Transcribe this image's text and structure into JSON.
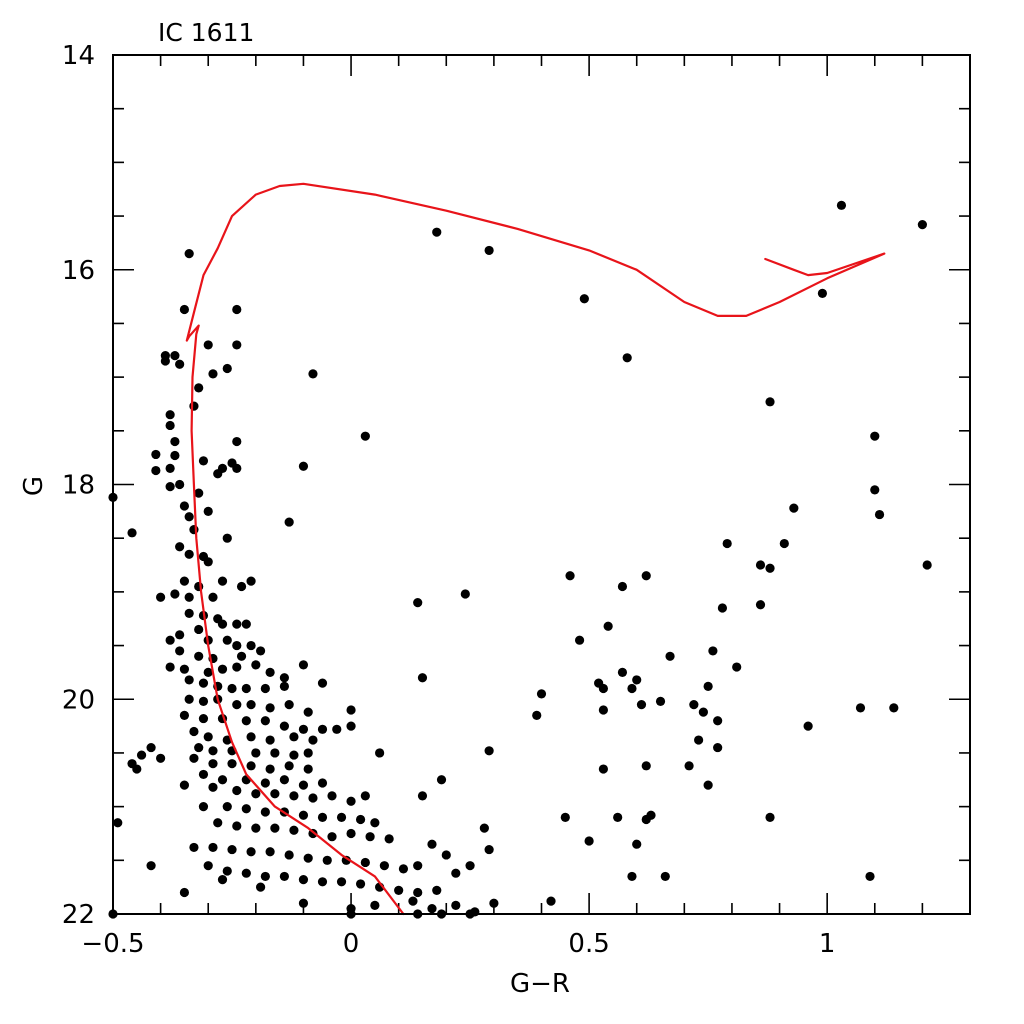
{
  "chart_data": {
    "type": "scatter",
    "title": "IC 1611",
    "xlabel": "G−R",
    "ylabel": "G",
    "xlim": [
      -0.5,
      1.3
    ],
    "ylim": [
      22,
      14
    ],
    "y_inverted": true,
    "grid": false,
    "x_ticks": [
      {
        "value": -0.5,
        "label": "−0.5"
      },
      {
        "value": 0,
        "label": "0"
      },
      {
        "value": 0.5,
        "label": "0.5"
      },
      {
        "value": 1,
        "label": "1"
      }
    ],
    "y_ticks": [
      {
        "value": 14,
        "label": "14"
      },
      {
        "value": 16,
        "label": "16"
      },
      {
        "value": 18,
        "label": "18"
      },
      {
        "value": 20,
        "label": "20"
      },
      {
        "value": 22,
        "label": "22"
      }
    ],
    "points": [
      [
        -0.34,
        15.85
      ],
      [
        0.18,
        15.65
      ],
      [
        0.29,
        15.82
      ],
      [
        1.03,
        15.4
      ],
      [
        1.2,
        15.58
      ],
      [
        0.49,
        16.27
      ],
      [
        0.99,
        16.22
      ],
      [
        0.58,
        16.82
      ],
      [
        0.88,
        17.23
      ],
      [
        1.1,
        17.55
      ],
      [
        0.03,
        17.55
      ],
      [
        -0.08,
        16.97
      ],
      [
        -0.35,
        16.37
      ],
      [
        -0.24,
        16.37
      ],
      [
        -0.24,
        16.7
      ],
      [
        -0.3,
        16.7
      ],
      [
        -0.39,
        16.8
      ],
      [
        -0.39,
        16.85
      ],
      [
        -0.37,
        16.8
      ],
      [
        -0.36,
        16.88
      ],
      [
        -0.32,
        17.1
      ],
      [
        -0.33,
        17.27
      ],
      [
        -0.26,
        16.92
      ],
      [
        -0.29,
        16.97
      ],
      [
        -0.38,
        17.35
      ],
      [
        -0.38,
        17.45
      ],
      [
        -0.37,
        17.6
      ],
      [
        -0.41,
        17.72
      ],
      [
        -0.37,
        17.73
      ],
      [
        -0.38,
        17.85
      ],
      [
        -0.41,
        17.87
      ],
      [
        -0.24,
        17.6
      ],
      [
        -0.25,
        17.8
      ],
      [
        -0.24,
        17.85
      ],
      [
        -0.27,
        17.85
      ],
      [
        -0.28,
        17.9
      ],
      [
        -0.31,
        17.78
      ],
      [
        -0.1,
        17.83
      ],
      [
        -0.38,
        18.02
      ],
      [
        -0.36,
        18.0
      ],
      [
        -0.32,
        18.08
      ],
      [
        -0.35,
        18.2
      ],
      [
        -0.34,
        18.3
      ],
      [
        -0.3,
        18.25
      ],
      [
        -0.33,
        18.42
      ],
      [
        -0.36,
        18.58
      ],
      [
        -0.34,
        18.65
      ],
      [
        -0.31,
        18.67
      ],
      [
        -0.26,
        18.5
      ],
      [
        -0.3,
        18.72
      ],
      [
        -0.27,
        18.9
      ],
      [
        -0.21,
        18.9
      ],
      [
        -0.23,
        18.95
      ],
      [
        -0.13,
        18.35
      ],
      [
        -0.5,
        18.12
      ],
      [
        -0.46,
        18.45
      ],
      [
        -0.35,
        18.9
      ],
      [
        -0.32,
        18.95
      ],
      [
        -0.34,
        19.05
      ],
      [
        -0.29,
        19.05
      ],
      [
        -0.37,
        19.02
      ],
      [
        -0.4,
        19.05
      ],
      [
        -0.34,
        19.2
      ],
      [
        -0.31,
        19.22
      ],
      [
        -0.28,
        19.25
      ],
      [
        -0.24,
        19.3
      ],
      [
        -0.22,
        19.3
      ],
      [
        -0.27,
        19.3
      ],
      [
        -0.32,
        19.35
      ],
      [
        -0.36,
        19.4
      ],
      [
        -0.38,
        19.45
      ],
      [
        -0.3,
        19.45
      ],
      [
        -0.26,
        19.45
      ],
      [
        -0.24,
        19.5
      ],
      [
        -0.21,
        19.5
      ],
      [
        -0.19,
        19.55
      ],
      [
        -0.36,
        19.55
      ],
      [
        -0.32,
        19.6
      ],
      [
        -0.29,
        19.62
      ],
      [
        -0.23,
        19.6
      ],
      [
        -0.38,
        19.7
      ],
      [
        -0.35,
        19.72
      ],
      [
        -0.3,
        19.75
      ],
      [
        -0.27,
        19.72
      ],
      [
        -0.24,
        19.7
      ],
      [
        -0.2,
        19.68
      ],
      [
        -0.17,
        19.75
      ],
      [
        -0.1,
        19.68
      ],
      [
        -0.14,
        19.8
      ],
      [
        -0.34,
        19.82
      ],
      [
        -0.31,
        19.85
      ],
      [
        -0.28,
        19.88
      ],
      [
        -0.25,
        19.9
      ],
      [
        -0.22,
        19.9
      ],
      [
        -0.18,
        19.9
      ],
      [
        -0.14,
        19.88
      ],
      [
        -0.06,
        19.85
      ],
      [
        -0.34,
        20.0
      ],
      [
        -0.31,
        20.02
      ],
      [
        -0.28,
        20.0
      ],
      [
        -0.24,
        20.05
      ],
      [
        -0.21,
        20.05
      ],
      [
        -0.17,
        20.08
      ],
      [
        -0.13,
        20.05
      ],
      [
        -0.09,
        20.12
      ],
      [
        0.0,
        20.1
      ],
      [
        -0.35,
        20.15
      ],
      [
        -0.31,
        20.18
      ],
      [
        -0.27,
        20.18
      ],
      [
        -0.22,
        20.2
      ],
      [
        -0.18,
        20.2
      ],
      [
        -0.14,
        20.25
      ],
      [
        -0.1,
        20.28
      ],
      [
        -0.06,
        20.28
      ],
      [
        -0.03,
        20.28
      ],
      [
        0.0,
        20.25
      ],
      [
        -0.33,
        20.3
      ],
      [
        -0.3,
        20.35
      ],
      [
        -0.26,
        20.38
      ],
      [
        -0.21,
        20.35
      ],
      [
        -0.17,
        20.38
      ],
      [
        -0.12,
        20.35
      ],
      [
        -0.08,
        20.38
      ],
      [
        -0.32,
        20.45
      ],
      [
        -0.29,
        20.48
      ],
      [
        -0.25,
        20.48
      ],
      [
        -0.2,
        20.5
      ],
      [
        -0.16,
        20.5
      ],
      [
        -0.12,
        20.52
      ],
      [
        -0.09,
        20.5
      ],
      [
        0.06,
        20.5
      ],
      [
        -0.42,
        20.45
      ],
      [
        -0.44,
        20.52
      ],
      [
        -0.4,
        20.55
      ],
      [
        -0.33,
        20.55
      ],
      [
        -0.29,
        20.6
      ],
      [
        -0.25,
        20.6
      ],
      [
        -0.21,
        20.62
      ],
      [
        -0.17,
        20.65
      ],
      [
        -0.13,
        20.62
      ],
      [
        -0.09,
        20.65
      ],
      [
        -0.46,
        20.6
      ],
      [
        -0.45,
        20.65
      ],
      [
        -0.31,
        20.7
      ],
      [
        -0.27,
        20.75
      ],
      [
        -0.22,
        20.75
      ],
      [
        -0.18,
        20.78
      ],
      [
        -0.14,
        20.75
      ],
      [
        -0.1,
        20.8
      ],
      [
        -0.06,
        20.78
      ],
      [
        -0.35,
        20.8
      ],
      [
        -0.29,
        20.82
      ],
      [
        -0.24,
        20.85
      ],
      [
        -0.2,
        20.88
      ],
      [
        -0.16,
        20.88
      ],
      [
        -0.12,
        20.9
      ],
      [
        -0.08,
        20.92
      ],
      [
        -0.04,
        20.9
      ],
      [
        0.0,
        20.95
      ],
      [
        0.03,
        20.9
      ],
      [
        -0.31,
        21.0
      ],
      [
        -0.26,
        21.0
      ],
      [
        -0.22,
        21.02
      ],
      [
        -0.18,
        21.05
      ],
      [
        -0.14,
        21.05
      ],
      [
        -0.1,
        21.08
      ],
      [
        -0.06,
        21.1
      ],
      [
        -0.02,
        21.1
      ],
      [
        0.02,
        21.12
      ],
      [
        0.05,
        21.15
      ],
      [
        -0.49,
        21.15
      ],
      [
        -0.28,
        21.15
      ],
      [
        -0.24,
        21.18
      ],
      [
        -0.2,
        21.2
      ],
      [
        -0.16,
        21.2
      ],
      [
        -0.12,
        21.22
      ],
      [
        -0.08,
        21.25
      ],
      [
        -0.04,
        21.28
      ],
      [
        0.0,
        21.25
      ],
      [
        0.04,
        21.28
      ],
      [
        0.08,
        21.3
      ],
      [
        -0.33,
        21.38
      ],
      [
        -0.29,
        21.38
      ],
      [
        -0.25,
        21.4
      ],
      [
        -0.21,
        21.42
      ],
      [
        -0.17,
        21.42
      ],
      [
        -0.13,
        21.45
      ],
      [
        -0.09,
        21.48
      ],
      [
        -0.05,
        21.5
      ],
      [
        -0.01,
        21.5
      ],
      [
        0.03,
        21.52
      ],
      [
        0.07,
        21.55
      ],
      [
        0.11,
        21.58
      ],
      [
        0.14,
        21.55
      ],
      [
        -0.42,
        21.55
      ],
      [
        -0.3,
        21.55
      ],
      [
        -0.26,
        21.6
      ],
      [
        -0.22,
        21.62
      ],
      [
        -0.18,
        21.65
      ],
      [
        -0.14,
        21.65
      ],
      [
        -0.1,
        21.68
      ],
      [
        -0.06,
        21.7
      ],
      [
        -0.02,
        21.7
      ],
      [
        0.02,
        21.72
      ],
      [
        0.06,
        21.75
      ],
      [
        0.1,
        21.78
      ],
      [
        0.14,
        21.8
      ],
      [
        0.18,
        21.78
      ],
      [
        0.22,
        21.62
      ],
      [
        0.25,
        21.55
      ],
      [
        0.29,
        21.4
      ],
      [
        0.28,
        21.2
      ],
      [
        0.17,
        21.35
      ],
      [
        0.2,
        21.45
      ],
      [
        -0.35,
        21.8
      ],
      [
        -0.27,
        21.68
      ],
      [
        -0.19,
        21.75
      ],
      [
        -0.1,
        21.9
      ],
      [
        0.0,
        21.95
      ],
      [
        0.05,
        21.92
      ],
      [
        0.13,
        21.88
      ],
      [
        0.17,
        21.95
      ],
      [
        0.22,
        21.92
      ],
      [
        0.26,
        21.98
      ],
      [
        0.3,
        21.9
      ],
      [
        0.42,
        21.88
      ],
      [
        -0.5,
        22.0
      ],
      [
        0.0,
        22.0
      ],
      [
        0.14,
        22.0
      ],
      [
        0.19,
        22.0
      ],
      [
        0.25,
        22.0
      ],
      [
        0.5,
        21.32
      ],
      [
        0.45,
        21.1
      ],
      [
        0.53,
        20.65
      ],
      [
        0.56,
        21.1
      ],
      [
        0.6,
        21.35
      ],
      [
        0.59,
        21.65
      ],
      [
        0.62,
        21.12
      ],
      [
        0.62,
        20.62
      ],
      [
        0.63,
        21.08
      ],
      [
        0.66,
        21.65
      ],
      [
        0.71,
        20.62
      ],
      [
        0.73,
        20.38
      ],
      [
        0.75,
        20.8
      ],
      [
        0.77,
        20.45
      ],
      [
        0.77,
        20.2
      ],
      [
        0.88,
        21.1
      ],
      [
        1.09,
        21.65
      ],
      [
        0.39,
        20.15
      ],
      [
        0.4,
        19.95
      ],
      [
        0.48,
        19.45
      ],
      [
        0.52,
        19.85
      ],
      [
        0.53,
        19.9
      ],
      [
        0.53,
        20.1
      ],
      [
        0.54,
        19.32
      ],
      [
        0.57,
        19.75
      ],
      [
        0.59,
        19.9
      ],
      [
        0.6,
        19.82
      ],
      [
        0.61,
        20.05
      ],
      [
        0.65,
        20.02
      ],
      [
        0.67,
        19.6
      ],
      [
        0.72,
        20.05
      ],
      [
        0.74,
        20.12
      ],
      [
        0.75,
        19.88
      ],
      [
        0.76,
        19.55
      ],
      [
        0.78,
        19.15
      ],
      [
        0.81,
        19.7
      ],
      [
        0.86,
        19.12
      ],
      [
        0.86,
        18.75
      ],
      [
        0.88,
        18.78
      ],
      [
        0.91,
        18.55
      ],
      [
        0.93,
        18.22
      ],
      [
        0.96,
        20.25
      ],
      [
        1.07,
        20.08
      ],
      [
        1.14,
        20.08
      ],
      [
        1.1,
        18.05
      ],
      [
        1.11,
        18.28
      ],
      [
        1.21,
        18.75
      ],
      [
        0.46,
        18.85
      ],
      [
        0.57,
        18.95
      ],
      [
        0.62,
        18.85
      ],
      [
        0.79,
        18.55
      ],
      [
        0.14,
        19.1
      ],
      [
        0.24,
        19.02
      ],
      [
        0.15,
        19.8
      ],
      [
        0.29,
        20.48
      ],
      [
        0.19,
        20.75
      ],
      [
        0.15,
        20.9
      ]
    ],
    "isochrone": [
      [
        0.11,
        22.0
      ],
      [
        0.05,
        21.65
      ],
      [
        -0.02,
        21.45
      ],
      [
        -0.09,
        21.2
      ],
      [
        -0.16,
        21.0
      ],
      [
        -0.22,
        20.7
      ],
      [
        -0.25,
        20.4
      ],
      [
        -0.28,
        20.0
      ],
      [
        -0.3,
        19.5
      ],
      [
        -0.315,
        19.0
      ],
      [
        -0.325,
        18.5
      ],
      [
        -0.33,
        18.0
      ],
      [
        -0.335,
        17.5
      ],
      [
        -0.333,
        17.0
      ],
      [
        -0.325,
        16.6
      ],
      [
        -0.32,
        16.52
      ],
      [
        -0.34,
        16.62
      ],
      [
        -0.345,
        16.66
      ],
      [
        -0.33,
        16.4
      ],
      [
        -0.31,
        16.05
      ],
      [
        -0.28,
        15.8
      ],
      [
        -0.25,
        15.5
      ],
      [
        -0.2,
        15.3
      ],
      [
        -0.15,
        15.22
      ],
      [
        -0.1,
        15.2
      ],
      [
        0.05,
        15.3
      ],
      [
        0.2,
        15.45
      ],
      [
        0.35,
        15.62
      ],
      [
        0.5,
        15.82
      ],
      [
        0.6,
        16.0
      ],
      [
        0.7,
        16.3
      ],
      [
        0.77,
        16.43
      ],
      [
        0.83,
        16.43
      ],
      [
        0.9,
        16.3
      ],
      [
        1.0,
        16.08
      ],
      [
        1.12,
        15.85
      ],
      [
        1.0,
        16.03
      ],
      [
        0.96,
        16.05
      ],
      [
        0.93,
        16.0
      ],
      [
        0.87,
        15.9
      ]
    ]
  }
}
